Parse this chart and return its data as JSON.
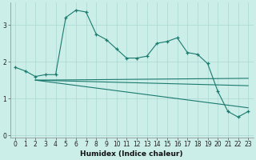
{
  "xlabel": "Humidex (Indice chaleur)",
  "bg_color": "#cceee8",
  "grid_color": "#aad8d0",
  "line_color": "#1a7a6e",
  "x_ticks": [
    0,
    1,
    2,
    3,
    4,
    5,
    6,
    7,
    8,
    9,
    10,
    11,
    12,
    13,
    14,
    15,
    16,
    17,
    18,
    19,
    20,
    21,
    22,
    23
  ],
  "ylim": [
    -0.05,
    3.6
  ],
  "xlim": [
    -0.5,
    23.5
  ],
  "yticks": [
    0,
    1,
    2,
    3
  ],
  "series1_x": [
    0,
    1,
    2,
    3,
    4,
    5,
    6,
    7,
    8,
    9,
    10,
    11,
    12,
    13,
    14,
    15,
    16,
    17,
    18,
    19,
    20,
    21,
    22,
    23
  ],
  "series1_y": [
    1.85,
    1.75,
    1.6,
    1.65,
    1.65,
    3.2,
    3.4,
    3.35,
    2.75,
    2.6,
    2.35,
    2.1,
    2.1,
    2.15,
    2.5,
    2.55,
    2.65,
    2.25,
    2.2,
    1.95,
    1.2,
    0.65,
    0.5,
    0.65
  ],
  "line2_x": [
    2,
    23
  ],
  "line2_y": [
    1.5,
    1.35
  ],
  "line3_x": [
    2,
    23
  ],
  "line3_y": [
    1.5,
    1.55
  ],
  "line4_x": [
    2,
    23
  ],
  "line4_y": [
    1.5,
    0.75
  ]
}
